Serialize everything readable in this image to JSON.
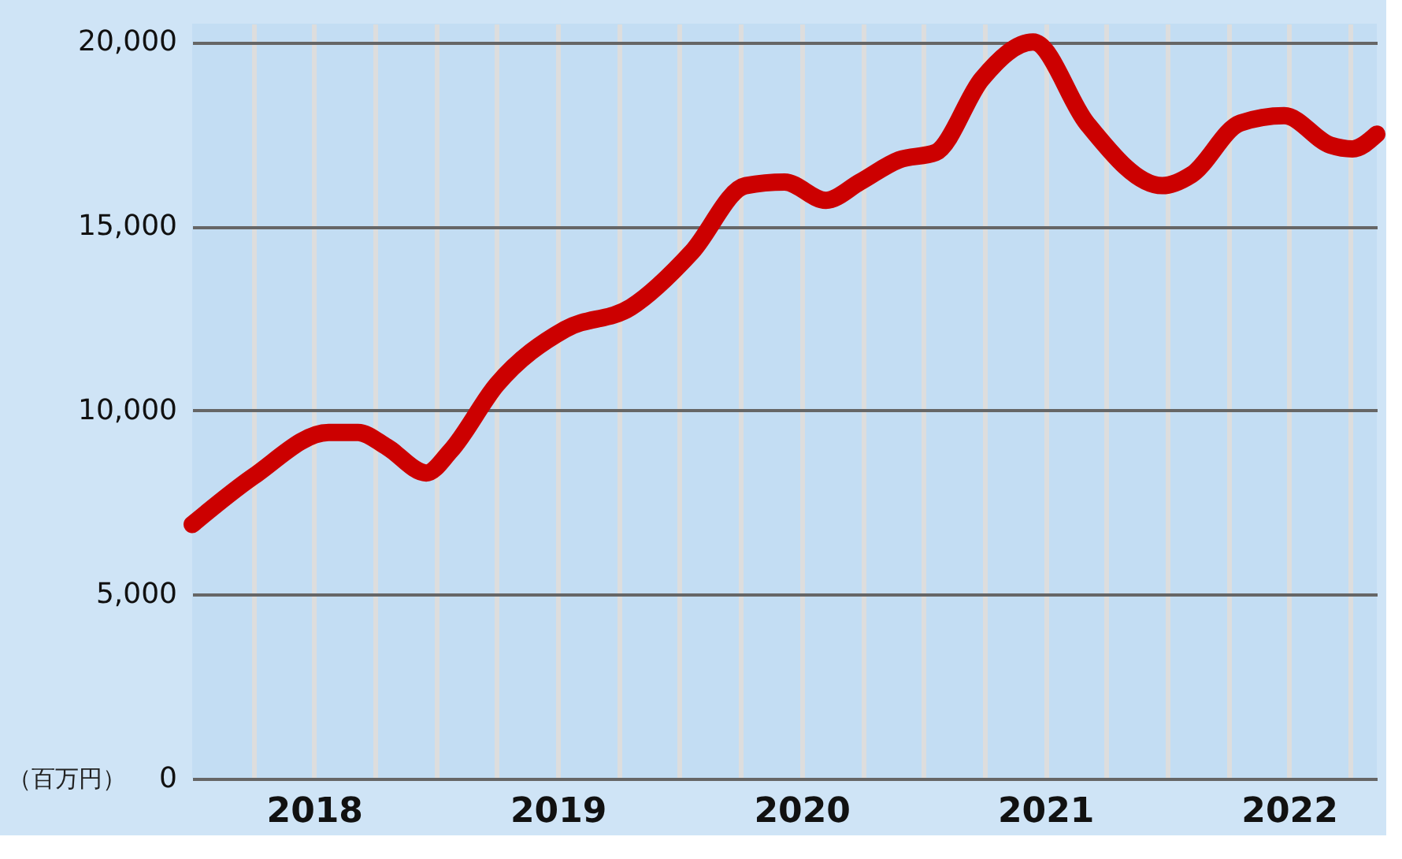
{
  "chart_data": {
    "type": "line",
    "annotations": [
      "（百万円）"
    ],
    "x": [
      2018.0,
      2018.25,
      2018.56,
      2018.68,
      2018.8,
      2018.96,
      2019.06,
      2019.25,
      2019.53,
      2019.8,
      2020.05,
      2020.27,
      2020.43,
      2020.6,
      2020.74,
      2020.9,
      2021.05,
      2021.24,
      2021.45,
      2021.67,
      2021.98,
      2022.1,
      2022.3,
      2022.48,
      2022.67,
      2022.76,
      2022.86
    ],
    "series": [
      {
        "color": "#cc0000",
        "values": [
          6900,
          8200,
          9400,
          9400,
          9000,
          8300,
          8900,
          10700,
          12200,
          12800,
          14300,
          16100,
          16200,
          15700,
          16200,
          16800,
          17000,
          19000,
          20000,
          17800,
          16100,
          16400,
          17800,
          18000,
          17200,
          17100,
          17500
        ]
      }
    ],
    "xlim": [
      2018.0,
      2022.86
    ],
    "xticks": [
      {
        "value": 2018.25,
        "label": null
      },
      {
        "value": 2018.5,
        "label": "2018"
      },
      {
        "value": 2018.75,
        "label": null
      },
      {
        "value": 2019,
        "label": null
      },
      {
        "value": 2019.25,
        "label": null
      },
      {
        "value": 2019.5,
        "label": "2019"
      },
      {
        "value": 2019.75,
        "label": null
      },
      {
        "value": 2020,
        "label": null
      },
      {
        "value": 2020.25,
        "label": null
      },
      {
        "value": 2020.5,
        "label": "2020"
      },
      {
        "value": 2020.75,
        "label": null
      },
      {
        "value": 2021,
        "label": null
      },
      {
        "value": 2021.25,
        "label": null
      },
      {
        "value": 2021.5,
        "label": "2021"
      },
      {
        "value": 2021.75,
        "label": null
      },
      {
        "value": 2022,
        "label": null
      },
      {
        "value": 2022.25,
        "label": null
      },
      {
        "value": 2022.5,
        "label": "2022"
      },
      {
        "value": 2022.75,
        "label": null
      }
    ],
    "ylim": [
      0,
      20500
    ],
    "yticks": [
      {
        "value": 0,
        "label": "0"
      },
      {
        "value": 5000,
        "label": "5,000"
      },
      {
        "value": 10000,
        "label": "10,000"
      },
      {
        "value": 15000,
        "label": "15,000"
      },
      {
        "value": 20000,
        "label": "20,000"
      }
    ],
    "grid": true,
    "line_style": "solid"
  }
}
